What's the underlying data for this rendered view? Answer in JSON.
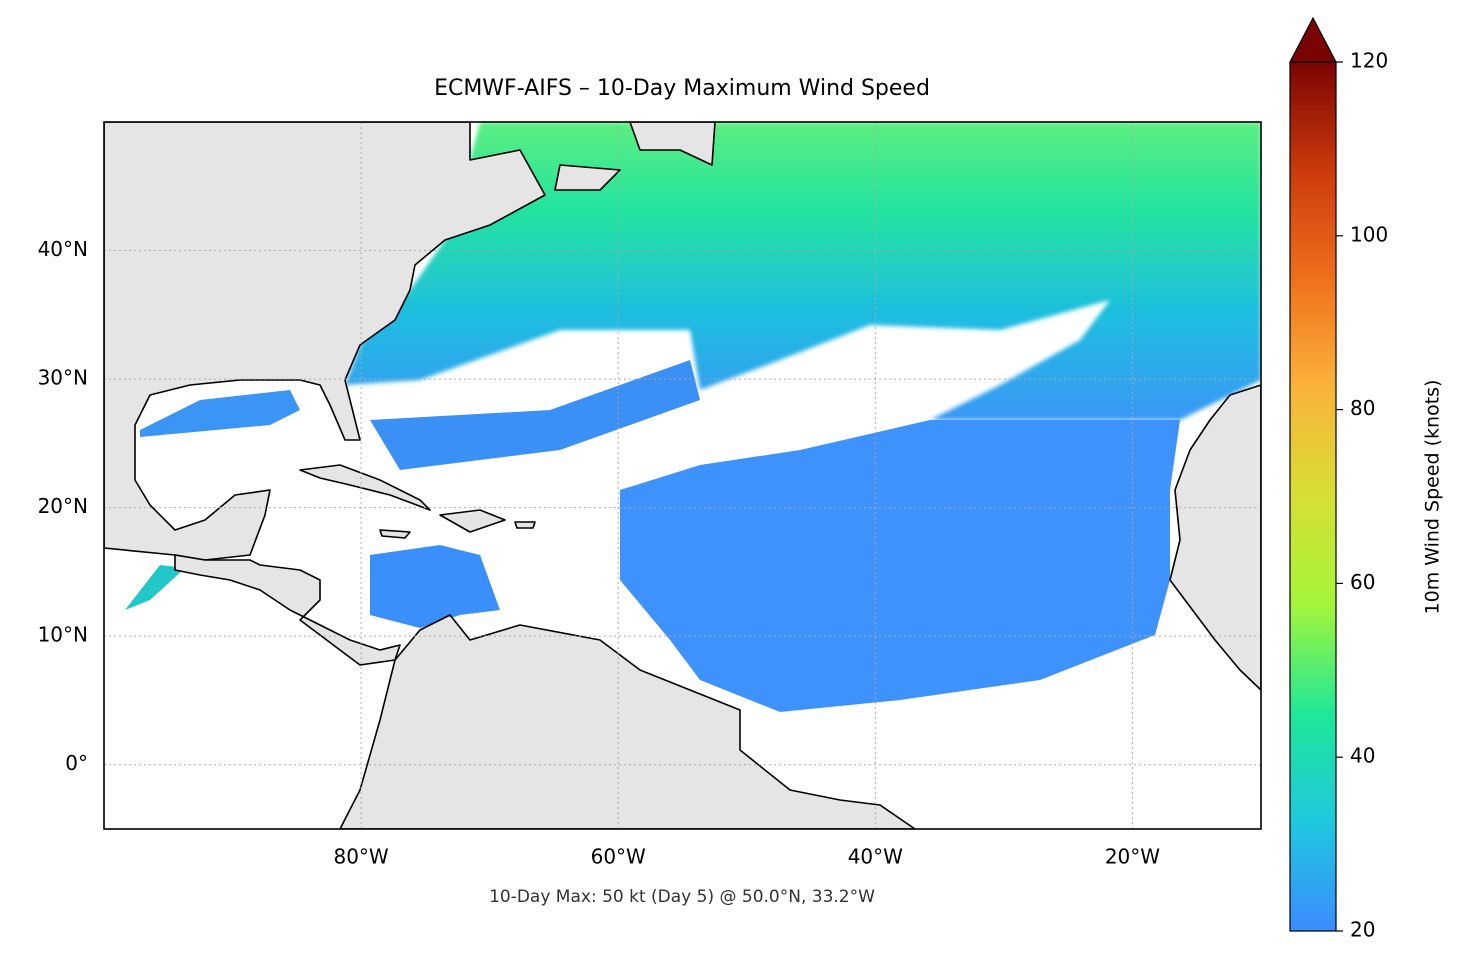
{
  "chart_data": {
    "type": "map",
    "title": "ECMWF-AIFS – 10-Day Maximum Wind Speed",
    "annotation": "10-Day Max: 50 kt (Day 5) @ 50.0°N, 33.2°W",
    "xlim": [
      -100,
      -10
    ],
    "ylim": [
      -5,
      50
    ],
    "xticks": [
      {
        "value": -80,
        "label": "80°W"
      },
      {
        "value": -60,
        "label": "60°W"
      },
      {
        "value": -40,
        "label": "40°W"
      },
      {
        "value": -20,
        "label": "20°W"
      }
    ],
    "yticks": [
      {
        "value": 0,
        "label": "0°"
      },
      {
        "value": 10,
        "label": "10°N"
      },
      {
        "value": 20,
        "label": "20°N"
      },
      {
        "value": 30,
        "label": "30°N"
      },
      {
        "value": 40,
        "label": "40°N"
      }
    ],
    "grid": true,
    "colorbar": {
      "label": "10m Wind Speed (knots)",
      "lim": [
        20,
        120
      ],
      "ticks": [
        20,
        40,
        60,
        80,
        100,
        120
      ],
      "colors": [
        "#3b8cff",
        "#1fc8de",
        "#1ee897",
        "#a4f53a",
        "#d6df35",
        "#fbb33a",
        "#f0701c",
        "#cc3a0c",
        "#7a0403"
      ],
      "extend": "max"
    }
  }
}
